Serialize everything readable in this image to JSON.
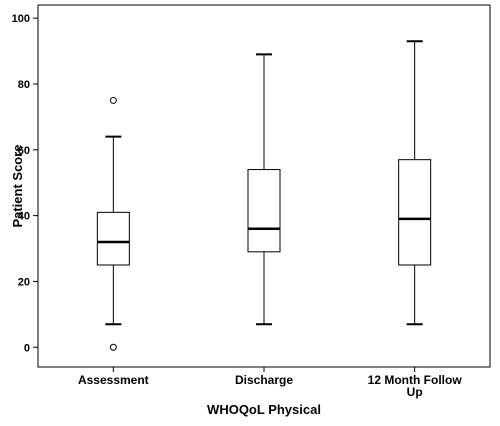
{
  "chart_data": {
    "type": "boxplot",
    "title": "",
    "xlabel": "WHOQoL Physical",
    "ylabel": "Patient Score",
    "ylim": [
      -6,
      104
    ],
    "yticks": [
      0,
      20,
      40,
      60,
      80,
      100
    ],
    "grid": false,
    "legend": "none",
    "categories": [
      {
        "label": [
          "Assessment"
        ],
        "min": 7,
        "q1": 25,
        "median": 32,
        "q3": 41,
        "max": 64,
        "outliers": [
          75,
          0
        ]
      },
      {
        "label": [
          "Discharge"
        ],
        "min": 7,
        "q1": 29,
        "median": 36,
        "q3": 54,
        "max": 89,
        "outliers": []
      },
      {
        "label": [
          "12 Month Follow",
          "Up"
        ],
        "min": 7,
        "q1": 25,
        "median": 39,
        "q3": 57,
        "max": 93,
        "outliers": []
      }
    ],
    "colors": {
      "box_fill": "#ffffff",
      "stroke": "#000000"
    }
  }
}
